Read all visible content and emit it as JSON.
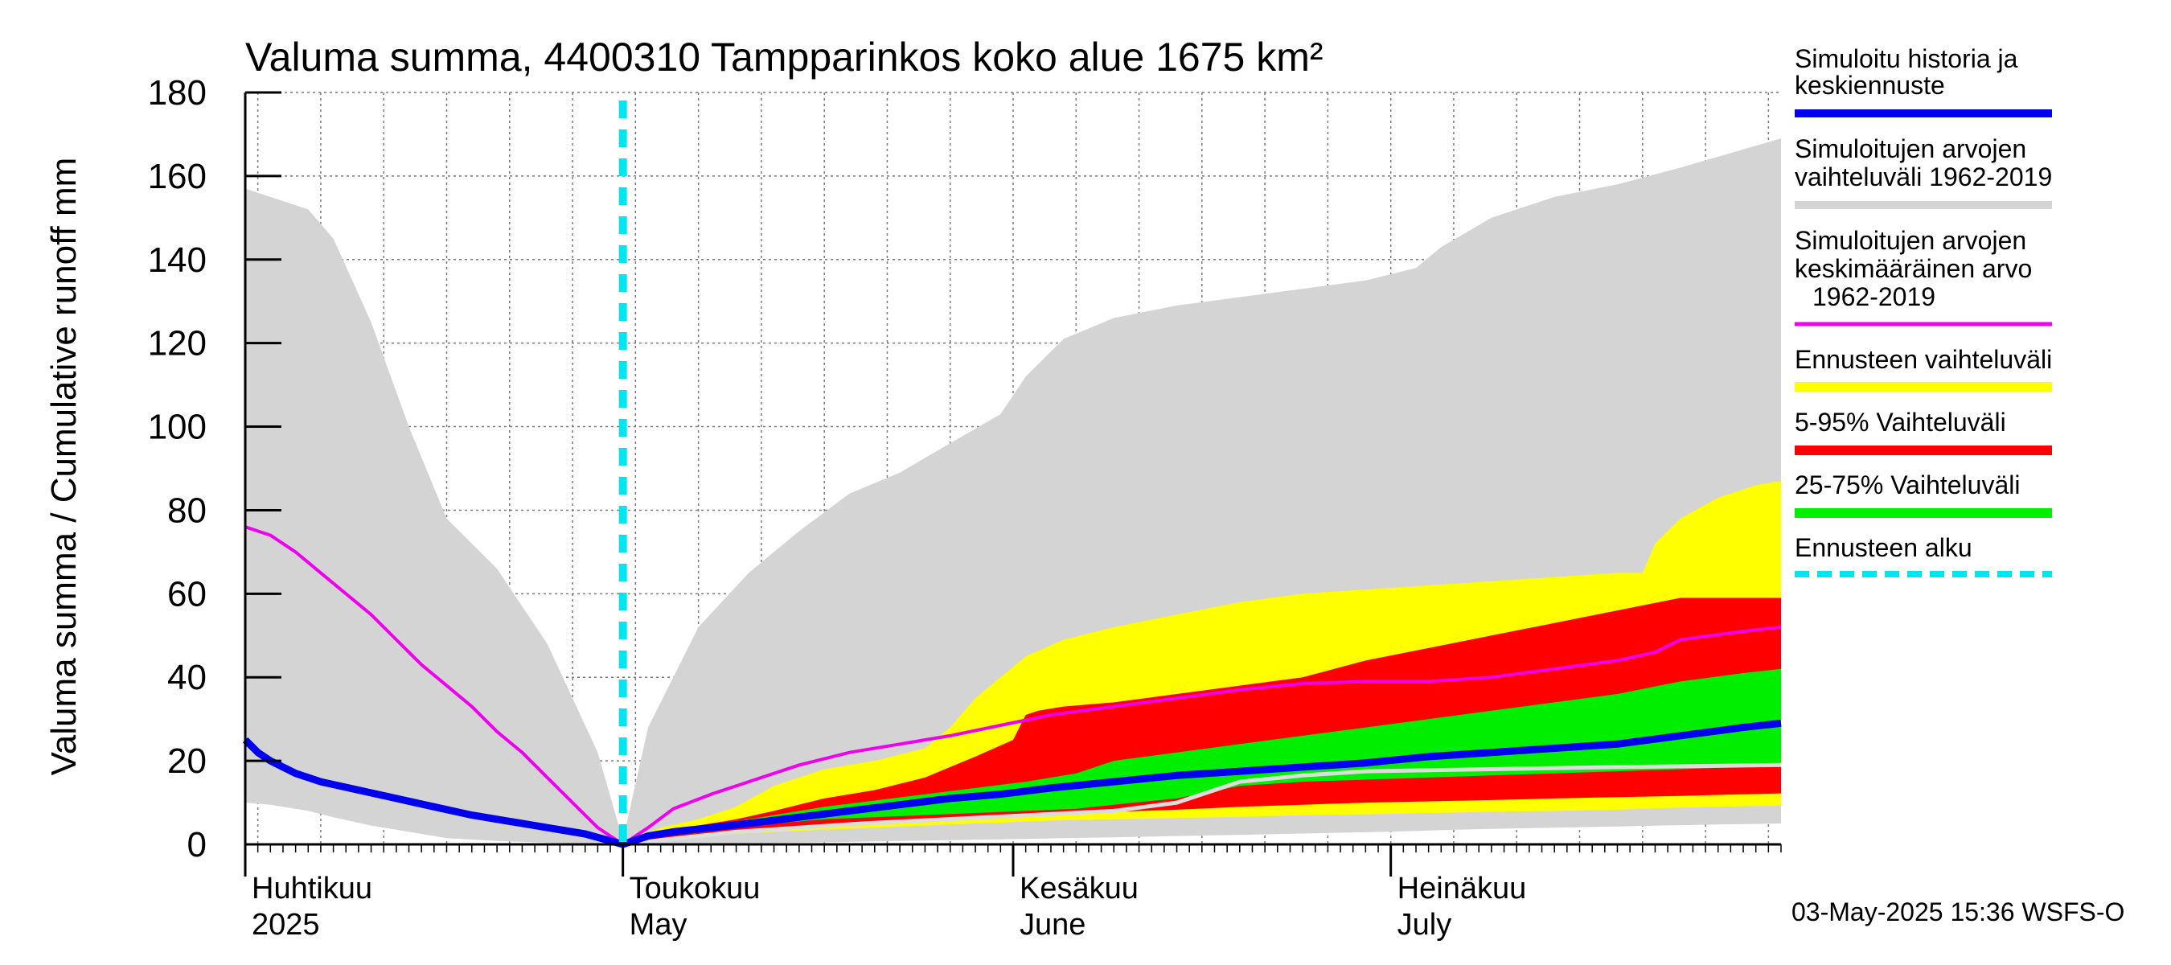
{
  "chart_data": {
    "type": "area",
    "title": "Valuma summa, 4400310 Tampparinkos koko alue 1675 km²",
    "ylabel": "Valuma summa / Cumulative runoff    mm",
    "ylim": [
      0,
      180
    ],
    "yticks": [
      "0",
      "20",
      "40",
      "60",
      "80",
      "100",
      "120",
      "140",
      "160",
      "180"
    ],
    "ytick_values": [
      0,
      20,
      40,
      60,
      80,
      100,
      120,
      140,
      160,
      180
    ],
    "x_unit": "day of year (2025)",
    "xlim": [
      91,
      213
    ],
    "month_labels": [
      {
        "fi": "Huhtikuu",
        "en": "2025",
        "day": 91
      },
      {
        "fi": "Toukokuu",
        "en": "May",
        "day": 121
      },
      {
        "fi": "Kesäkuu",
        "en": "June",
        "day": 152
      },
      {
        "fi": "Heinäkuu",
        "en": "July",
        "day": 182
      }
    ],
    "forecast_start_day": 121,
    "series": [
      {
        "name": "Simuloitujen arvojen vaihteluväli 1962-2019",
        "kind": "band",
        "color": "#d4d4d4",
        "x": [
          91,
          93,
          96,
          98,
          101,
          104,
          107,
          111,
          115,
          119,
          121,
          123,
          127,
          131,
          135,
          139,
          143,
          147,
          151,
          153,
          156,
          160,
          165,
          170,
          175,
          180,
          184,
          186,
          190,
          195,
          200,
          205,
          213
        ],
        "upper": [
          157,
          155,
          152,
          145,
          125,
          100,
          78,
          66,
          48,
          22,
          1,
          28,
          52,
          65,
          75,
          84,
          89,
          96,
          103,
          112,
          121,
          126,
          129,
          131,
          133,
          135,
          138,
          143,
          150,
          155,
          158,
          162,
          169
        ],
        "lower": [
          10,
          9.5,
          8,
          6.5,
          4.5,
          3,
          1.5,
          0.8,
          0.4,
          0.1,
          0,
          0.1,
          0.2,
          0.3,
          0.4,
          0.6,
          0.8,
          1.0,
          1.2,
          1.3,
          1.5,
          1.7,
          2.0,
          2.3,
          2.6,
          2.9,
          3.2,
          3.4,
          3.7,
          4.0,
          4.3,
          4.6,
          5.0
        ]
      },
      {
        "name": "Ennusteen vaihteluväli",
        "kind": "band",
        "color": "#ffff00",
        "x": [
          121,
          124,
          127,
          130,
          133,
          137,
          141,
          145,
          147,
          149,
          151,
          153,
          156,
          160,
          165,
          170,
          175,
          180,
          185,
          190,
          195,
          200,
          202,
          203,
          205,
          208,
          211,
          213
        ],
        "upper": [
          0.5,
          4,
          6,
          9,
          14,
          18,
          20,
          23,
          28,
          35,
          40,
          45,
          49,
          52,
          55,
          58,
          60,
          61,
          62,
          63,
          64,
          65,
          65,
          72,
          78,
          83,
          86,
          87
        ],
        "lower": [
          0,
          1,
          2,
          2.5,
          3,
          3.5,
          4,
          4.5,
          4.8,
          5,
          5.2,
          5.5,
          5.8,
          6,
          6.3,
          6.6,
          7,
          7.2,
          7.5,
          7.8,
          8,
          8.3,
          8.5,
          8.6,
          8.8,
          9,
          9.2,
          9.3
        ]
      },
      {
        "name": "5-95% Vaihteluväli",
        "kind": "band",
        "color": "#ff0000",
        "x": [
          121,
          124,
          127,
          130,
          133,
          137,
          141,
          145,
          149,
          152,
          153,
          154,
          156,
          160,
          165,
          170,
          175,
          180,
          185,
          190,
          195,
          200,
          205,
          210,
          213
        ],
        "upper": [
          0.3,
          3,
          4.5,
          6,
          8,
          11,
          13,
          16,
          21,
          25,
          31,
          32,
          33,
          34,
          36,
          38,
          40,
          44,
          47,
          50,
          53,
          56,
          59,
          59,
          59
        ],
        "lower": [
          0,
          1.5,
          2.5,
          3.2,
          4,
          4.5,
          5,
          5.5,
          6,
          6.5,
          6.8,
          7,
          7.3,
          7.8,
          8.3,
          9,
          9.5,
          10,
          10.3,
          10.6,
          11,
          11.3,
          11.6,
          12,
          12.2
        ]
      },
      {
        "name": "25-75% Vaihteluväli",
        "kind": "band",
        "color": "#00ee00",
        "x": [
          121,
          124,
          127,
          130,
          133,
          137,
          141,
          145,
          149,
          153,
          157,
          160,
          165,
          170,
          175,
          180,
          185,
          190,
          195,
          200,
          205,
          210,
          213
        ],
        "upper": [
          0.2,
          2.8,
          4,
          5.5,
          7,
          9,
          10.5,
          12,
          13.5,
          15,
          17,
          20,
          22,
          24,
          26,
          28,
          30,
          32,
          34,
          36,
          39,
          41,
          42
        ],
        "lower": [
          0,
          2,
          3,
          4,
          5,
          6,
          6.5,
          7,
          7.5,
          8,
          8.5,
          9.5,
          11,
          14,
          15,
          15.5,
          16,
          16.5,
          17,
          17.5,
          18,
          18.5,
          19
        ]
      },
      {
        "name": "Simuloitujen arvojen keskimääräinen arvo 1962-2019",
        "kind": "line",
        "color": "#ee00ee",
        "x": [
          91,
          93,
          95,
          97,
          99,
          101,
          103,
          105,
          107,
          109,
          111,
          113,
          115,
          117,
          119,
          121,
          123,
          125,
          128,
          131,
          135,
          139,
          143,
          147,
          151,
          155,
          160,
          165,
          170,
          175,
          180,
          185,
          190,
          195,
          200,
          203,
          205,
          210,
          213
        ],
        "values": [
          76,
          74,
          70,
          65,
          60,
          55,
          49,
          43,
          38,
          33,
          27,
          22,
          16,
          10,
          4,
          0,
          4,
          8.5,
          12,
          15,
          19,
          22,
          24,
          26,
          28.5,
          31,
          33,
          35,
          37,
          38.5,
          39,
          39,
          40,
          42,
          44,
          46,
          49,
          51,
          52
        ]
      },
      {
        "name": "Simuloitu historia ja keskiennuste",
        "kind": "line",
        "color": "#0000ee",
        "x": [
          91,
          92,
          93,
          95,
          97,
          100,
          103,
          106,
          109,
          112,
          115,
          118,
          121,
          123,
          125,
          128,
          131,
          135,
          139,
          143,
          147,
          151,
          155,
          160,
          165,
          170,
          175,
          180,
          185,
          190,
          195,
          200,
          205,
          210,
          213
        ],
        "values": [
          25,
          22,
          20,
          17,
          15,
          13,
          11,
          9,
          7,
          5.5,
          4,
          2.5,
          0,
          2,
          3,
          4,
          5,
          6.5,
          8,
          9.5,
          11,
          12,
          13.5,
          15,
          16.5,
          17.5,
          18.5,
          19.5,
          21,
          22,
          23,
          24,
          26,
          28,
          29
        ]
      },
      {
        "name": "median",
        "kind": "line",
        "color": "#dddddd",
        "x": [
          121,
          130,
          140,
          150,
          160,
          165,
          170,
          175,
          180,
          190,
          200,
          213
        ],
        "values": [
          0,
          3,
          5,
          6.5,
          8,
          10,
          15,
          16.5,
          17.5,
          18,
          18.5,
          19
        ]
      }
    ],
    "legend": [
      {
        "label": "Simuloitu historia ja keskiennuste",
        "color": "#0000ee",
        "style": "solid"
      },
      {
        "label": "Simuloitujen arvojen vaihteluväli 1962-2019",
        "color": "#d4d4d4",
        "style": "solid"
      },
      {
        "label": "Simuloitujen arvojen keskimääräinen arvo 1962-2019",
        "color": "#ee00ee",
        "style": "solid"
      },
      {
        "label": "Ennusteen vaihteluväli",
        "color": "#ffff00",
        "style": "solid"
      },
      {
        "label": "5-95% Vaihteluväli",
        "color": "#ff0000",
        "style": "solid"
      },
      {
        "label": "25-75% Vaihteluväli",
        "color": "#00ee00",
        "style": "solid"
      },
      {
        "label": "Ennusteen alku",
        "color": "#00e5ee",
        "style": "dashed"
      }
    ],
    "legend_text": {
      "sim_hist_1": "Simuloitu historia ja",
      "sim_hist_2": "keskiennuste",
      "range_1": "Simuloitujen arvojen",
      "range_2": "vaihteluväli 1962-2019",
      "mean_1": "Simuloitujen arvojen",
      "mean_2": "keskimääräinen arvo",
      "mean_3": "1962-2019",
      "forecast_range": "Ennusteen vaihteluväli",
      "p5_95": "5-95% Vaihteluväli",
      "p25_75": "25-75% Vaihteluväli",
      "forecast_start": "Ennusteen alku"
    },
    "timestamp": "03-May-2025 15:36 WSFS-O"
  }
}
